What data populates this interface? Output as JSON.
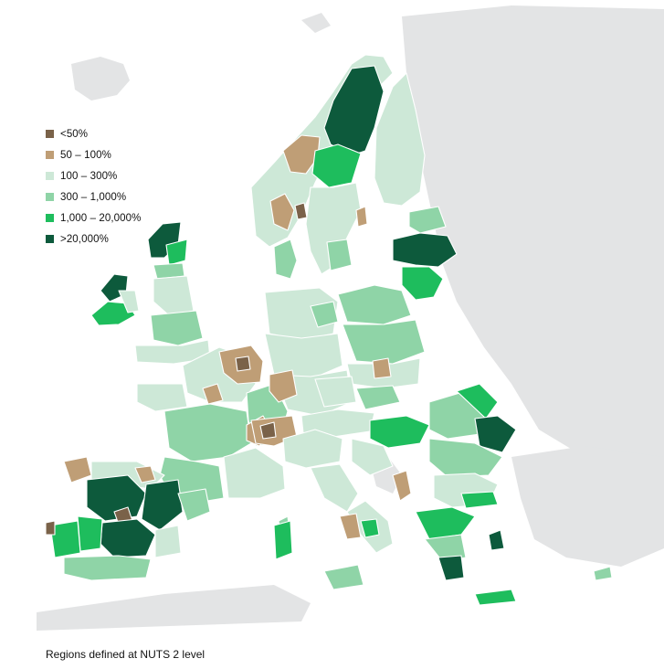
{
  "legend": {
    "items": [
      {
        "label": "<50%",
        "color": "#7a6249"
      },
      {
        "label": "50 – 100%",
        "color": "#bf9e76"
      },
      {
        "label": "100 – 300%",
        "color": "#cde8d7"
      },
      {
        "label": "300 – 1,000%",
        "color": "#8fd4a7"
      },
      {
        "label": "1,000 – 20,000%",
        "color": "#1ebd5d"
      },
      {
        "label": ">20,000%",
        "color": "#0d5a3c"
      }
    ]
  },
  "footnote": "Regions defined at NUTS 2 level",
  "colors": {
    "background_land": "#e3e4e5",
    "sea": "#ffffff",
    "region_border": "#ffffff"
  }
}
